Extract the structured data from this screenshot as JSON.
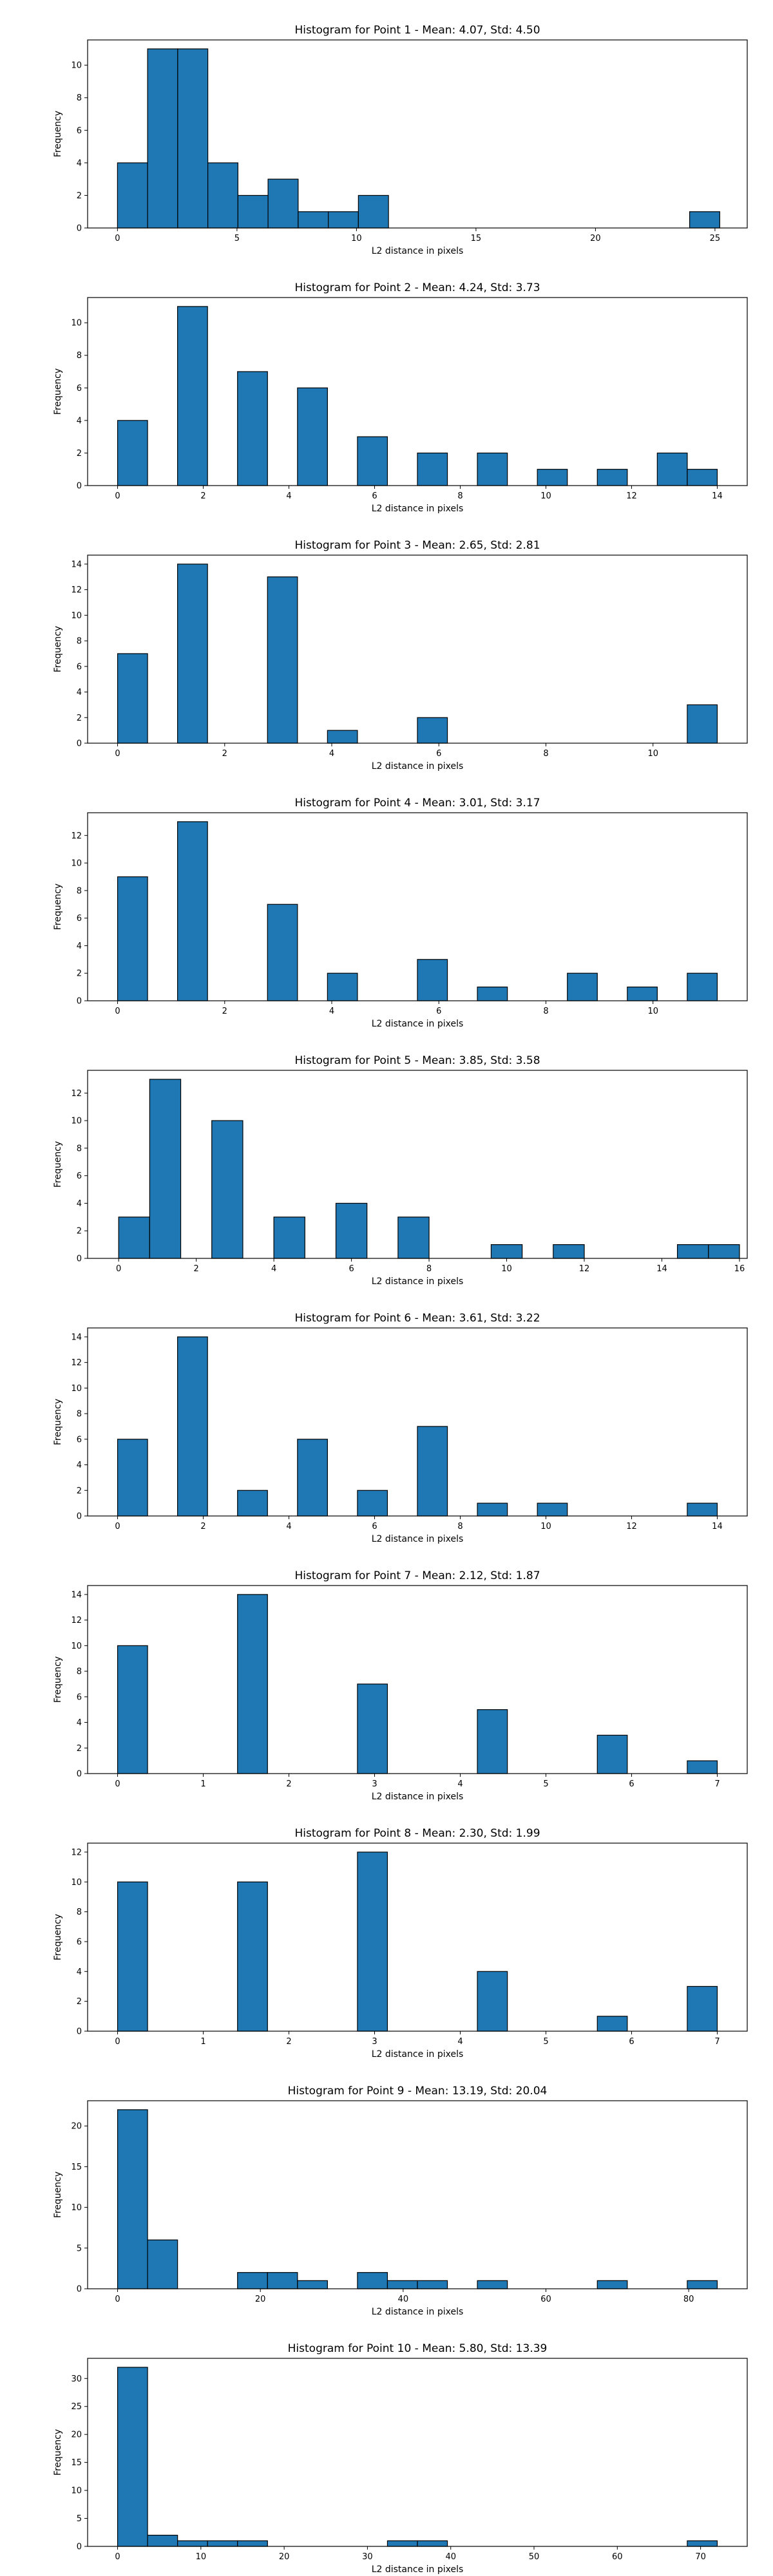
{
  "colors": {
    "bar_fill": "#1f77b4",
    "bar_edge": "#000000",
    "axes": "#000000"
  },
  "chart_data": [
    {
      "type": "bar",
      "title": "Histogram for Point 1 - Mean: 4.07, Std: 4.50",
      "xlabel": "L2 distance in pixels",
      "ylabel": "Frequency",
      "xlim": [
        -1.25,
        26.35
      ],
      "ylim": [
        0,
        11.55
      ],
      "xticks": [
        0,
        5,
        10,
        15,
        20,
        25
      ],
      "yticks": [
        0,
        2,
        4,
        6,
        8,
        10
      ],
      "grid": false,
      "bins": [
        {
          "x0": 0.0,
          "x1": 1.26,
          "value": 4
        },
        {
          "x0": 1.26,
          "x1": 2.52,
          "value": 11
        },
        {
          "x0": 2.52,
          "x1": 3.78,
          "value": 11
        },
        {
          "x0": 3.78,
          "x1": 5.04,
          "value": 4
        },
        {
          "x0": 5.04,
          "x1": 6.3,
          "value": 2
        },
        {
          "x0": 6.3,
          "x1": 7.56,
          "value": 3
        },
        {
          "x0": 7.56,
          "x1": 8.82,
          "value": 1
        },
        {
          "x0": 8.82,
          "x1": 10.08,
          "value": 1
        },
        {
          "x0": 10.08,
          "x1": 11.34,
          "value": 2
        },
        {
          "x0": 23.94,
          "x1": 25.2,
          "value": 1
        }
      ]
    },
    {
      "type": "bar",
      "title": "Histogram for Point 2 - Mean: 4.24, Std: 3.73",
      "xlabel": "L2 distance in pixels",
      "ylabel": "Frequency",
      "xlim": [
        -0.7,
        14.7
      ],
      "ylim": [
        0,
        11.55
      ],
      "xticks": [
        0,
        2,
        4,
        6,
        8,
        10,
        12,
        14
      ],
      "yticks": [
        0,
        2,
        4,
        6,
        8,
        10
      ],
      "grid": false,
      "bins": [
        {
          "x0": 0.0,
          "x1": 0.7,
          "value": 4
        },
        {
          "x0": 1.4,
          "x1": 2.1,
          "value": 11
        },
        {
          "x0": 2.8,
          "x1": 3.5,
          "value": 7
        },
        {
          "x0": 4.2,
          "x1": 4.9,
          "value": 6
        },
        {
          "x0": 5.6,
          "x1": 6.3,
          "value": 3
        },
        {
          "x0": 7.0,
          "x1": 7.7,
          "value": 2
        },
        {
          "x0": 8.4,
          "x1": 9.1,
          "value": 2
        },
        {
          "x0": 9.8,
          "x1": 10.5,
          "value": 1
        },
        {
          "x0": 11.2,
          "x1": 11.9,
          "value": 1
        },
        {
          "x0": 12.6,
          "x1": 13.3,
          "value": 2
        },
        {
          "x0": 13.3,
          "x1": 14.0,
          "value": 1
        }
      ]
    },
    {
      "type": "bar",
      "title": "Histogram for Point 3 - Mean: 2.65, Std: 2.81",
      "xlabel": "L2 distance in pixels",
      "ylabel": "Frequency",
      "xlim": [
        -0.56,
        11.76
      ],
      "ylim": [
        0,
        14.7
      ],
      "xticks": [
        0,
        2,
        4,
        6,
        8,
        10
      ],
      "yticks": [
        0,
        2,
        4,
        6,
        8,
        10,
        12,
        14
      ],
      "grid": false,
      "bins": [
        {
          "x0": 0.0,
          "x1": 0.56,
          "value": 7
        },
        {
          "x0": 1.12,
          "x1": 1.68,
          "value": 14
        },
        {
          "x0": 2.8,
          "x1": 3.36,
          "value": 13
        },
        {
          "x0": 3.92,
          "x1": 4.48,
          "value": 1
        },
        {
          "x0": 5.6,
          "x1": 6.16,
          "value": 2
        },
        {
          "x0": 10.64,
          "x1": 11.2,
          "value": 3
        }
      ]
    },
    {
      "type": "bar",
      "title": "Histogram for Point 4 - Mean: 3.01, Std: 3.17",
      "xlabel": "L2 distance in pixels",
      "ylabel": "Frequency",
      "xlim": [
        -0.56,
        11.76
      ],
      "ylim": [
        0,
        13.65
      ],
      "xticks": [
        0,
        2,
        4,
        6,
        8,
        10
      ],
      "yticks": [
        0,
        2,
        4,
        6,
        8,
        10,
        12
      ],
      "grid": false,
      "bins": [
        {
          "x0": 0.0,
          "x1": 0.56,
          "value": 9
        },
        {
          "x0": 1.12,
          "x1": 1.68,
          "value": 13
        },
        {
          "x0": 2.8,
          "x1": 3.36,
          "value": 7
        },
        {
          "x0": 3.92,
          "x1": 4.48,
          "value": 2
        },
        {
          "x0": 5.6,
          "x1": 6.16,
          "value": 3
        },
        {
          "x0": 6.72,
          "x1": 7.28,
          "value": 1
        },
        {
          "x0": 8.4,
          "x1": 8.96,
          "value": 2
        },
        {
          "x0": 9.52,
          "x1": 10.08,
          "value": 1
        },
        {
          "x0": 10.64,
          "x1": 11.2,
          "value": 2
        }
      ]
    },
    {
      "type": "bar",
      "title": "Histogram for Point 5 - Mean: 3.85, Std: 3.58",
      "xlabel": "L2 distance in pixels",
      "ylabel": "Frequency",
      "xlim": [
        -0.8,
        16.2
      ],
      "ylim": [
        0,
        13.65
      ],
      "xticks": [
        0,
        2,
        4,
        6,
        8,
        10,
        12,
        14,
        16
      ],
      "yticks": [
        0,
        2,
        4,
        6,
        8,
        10,
        12
      ],
      "grid": false,
      "bins": [
        {
          "x0": 0.0,
          "x1": 0.8,
          "value": 3
        },
        {
          "x0": 0.8,
          "x1": 1.6,
          "value": 13
        },
        {
          "x0": 2.4,
          "x1": 3.2,
          "value": 10
        },
        {
          "x0": 4.0,
          "x1": 4.8,
          "value": 3
        },
        {
          "x0": 5.6,
          "x1": 6.4,
          "value": 4
        },
        {
          "x0": 7.2,
          "x1": 8.0,
          "value": 3
        },
        {
          "x0": 9.6,
          "x1": 10.4,
          "value": 1
        },
        {
          "x0": 11.2,
          "x1": 12.0,
          "value": 1
        },
        {
          "x0": 14.4,
          "x1": 15.2,
          "value": 1
        },
        {
          "x0": 15.2,
          "x1": 16.0,
          "value": 1
        }
      ]
    },
    {
      "type": "bar",
      "title": "Histogram for Point 6 - Mean: 3.61, Std: 3.22",
      "xlabel": "L2 distance in pixels",
      "ylabel": "Frequency",
      "xlim": [
        -0.7,
        14.7
      ],
      "ylim": [
        0,
        14.7
      ],
      "xticks": [
        0,
        2,
        4,
        6,
        8,
        10,
        12,
        14
      ],
      "yticks": [
        0,
        2,
        4,
        6,
        8,
        10,
        12,
        14
      ],
      "grid": false,
      "bins": [
        {
          "x0": 0.0,
          "x1": 0.7,
          "value": 6
        },
        {
          "x0": 1.4,
          "x1": 2.1,
          "value": 14
        },
        {
          "x0": 2.8,
          "x1": 3.5,
          "value": 2
        },
        {
          "x0": 4.2,
          "x1": 4.9,
          "value": 6
        },
        {
          "x0": 5.6,
          "x1": 6.3,
          "value": 2
        },
        {
          "x0": 7.0,
          "x1": 7.7,
          "value": 7
        },
        {
          "x0": 8.4,
          "x1": 9.1,
          "value": 1
        },
        {
          "x0": 9.8,
          "x1": 10.5,
          "value": 1
        },
        {
          "x0": 13.3,
          "x1": 14.0,
          "value": 1
        }
      ]
    },
    {
      "type": "bar",
      "title": "Histogram for Point 7 - Mean: 2.12, Std: 1.87",
      "xlabel": "L2 distance in pixels",
      "ylabel": "Frequency",
      "xlim": [
        -0.35,
        7.35
      ],
      "ylim": [
        0,
        14.7
      ],
      "xticks": [
        0,
        1,
        2,
        3,
        4,
        5,
        6,
        7
      ],
      "yticks": [
        0,
        2,
        4,
        6,
        8,
        10,
        12,
        14
      ],
      "grid": false,
      "bins": [
        {
          "x0": 0.0,
          "x1": 0.35,
          "value": 10
        },
        {
          "x0": 1.4,
          "x1": 1.75,
          "value": 14
        },
        {
          "x0": 2.8,
          "x1": 3.15,
          "value": 7
        },
        {
          "x0": 4.2,
          "x1": 4.55,
          "value": 5
        },
        {
          "x0": 5.6,
          "x1": 5.95,
          "value": 3
        },
        {
          "x0": 6.65,
          "x1": 7.0,
          "value": 1
        }
      ]
    },
    {
      "type": "bar",
      "title": "Histogram for Point 8 - Mean: 2.30, Std: 1.99",
      "xlabel": "L2 distance in pixels",
      "ylabel": "Frequency",
      "xlim": [
        -0.35,
        7.35
      ],
      "ylim": [
        0,
        12.6
      ],
      "xticks": [
        0,
        1,
        2,
        3,
        4,
        5,
        6,
        7
      ],
      "yticks": [
        0,
        2,
        4,
        6,
        8,
        10,
        12
      ],
      "grid": false,
      "bins": [
        {
          "x0": 0.0,
          "x1": 0.35,
          "value": 10
        },
        {
          "x0": 1.4,
          "x1": 1.75,
          "value": 10
        },
        {
          "x0": 2.8,
          "x1": 3.15,
          "value": 12
        },
        {
          "x0": 4.2,
          "x1": 4.55,
          "value": 4
        },
        {
          "x0": 5.6,
          "x1": 5.95,
          "value": 1
        },
        {
          "x0": 6.65,
          "x1": 7.0,
          "value": 3
        }
      ]
    },
    {
      "type": "bar",
      "title": "Histogram for Point 9 - Mean: 13.19, Std: 20.04",
      "xlabel": "L2 distance in pixels",
      "ylabel": "Frequency",
      "xlim": [
        -4.2,
        88.2
      ],
      "ylim": [
        0,
        23.1
      ],
      "xticks": [
        0,
        20,
        40,
        60,
        80
      ],
      "yticks": [
        0,
        5,
        10,
        15,
        20
      ],
      "grid": false,
      "bins": [
        {
          "x0": 0.0,
          "x1": 4.2,
          "value": 22
        },
        {
          "x0": 4.2,
          "x1": 8.4,
          "value": 6
        },
        {
          "x0": 16.8,
          "x1": 21.0,
          "value": 2
        },
        {
          "x0": 21.0,
          "x1": 25.2,
          "value": 2
        },
        {
          "x0": 25.2,
          "x1": 29.4,
          "value": 1
        },
        {
          "x0": 33.6,
          "x1": 37.8,
          "value": 2
        },
        {
          "x0": 37.8,
          "x1": 42.0,
          "value": 1
        },
        {
          "x0": 42.0,
          "x1": 46.2,
          "value": 1
        },
        {
          "x0": 50.4,
          "x1": 54.6,
          "value": 1
        },
        {
          "x0": 67.2,
          "x1": 71.4,
          "value": 1
        },
        {
          "x0": 79.8,
          "x1": 84.0,
          "value": 1
        }
      ]
    },
    {
      "type": "bar",
      "title": "Histogram for Point 10 - Mean: 5.80, Std: 13.39",
      "xlabel": "L2 distance in pixels",
      "ylabel": "Frequency",
      "xlim": [
        -3.6,
        75.6
      ],
      "ylim": [
        0,
        33.6
      ],
      "xticks": [
        0,
        10,
        20,
        30,
        40,
        50,
        60,
        70
      ],
      "yticks": [
        0,
        5,
        10,
        15,
        20,
        25,
        30
      ],
      "grid": false,
      "bins": [
        {
          "x0": 0.0,
          "x1": 3.6,
          "value": 32
        },
        {
          "x0": 3.6,
          "x1": 7.2,
          "value": 2
        },
        {
          "x0": 7.2,
          "x1": 10.8,
          "value": 1
        },
        {
          "x0": 10.8,
          "x1": 14.4,
          "value": 1
        },
        {
          "x0": 14.4,
          "x1": 18.0,
          "value": 1
        },
        {
          "x0": 32.4,
          "x1": 36.0,
          "value": 1
        },
        {
          "x0": 36.0,
          "x1": 39.6,
          "value": 1
        },
        {
          "x0": 68.4,
          "x1": 72.0,
          "value": 1
        }
      ]
    }
  ]
}
